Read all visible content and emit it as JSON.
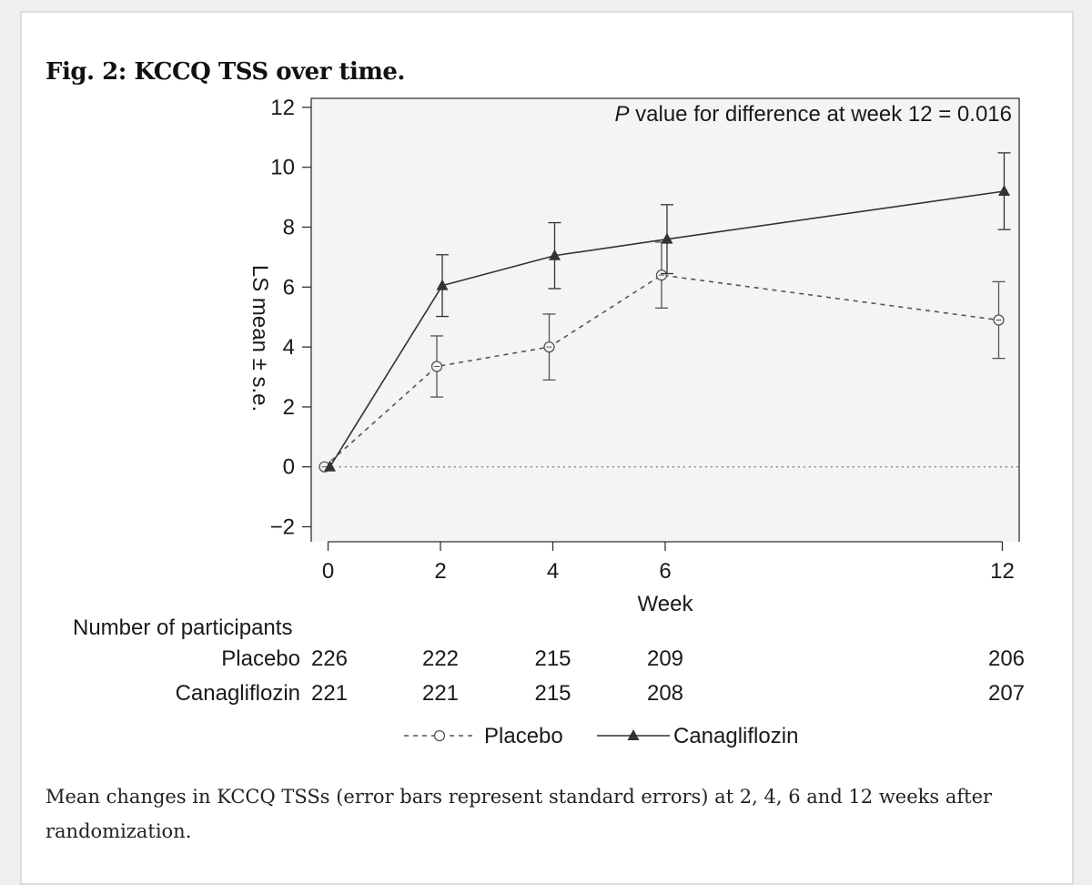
{
  "figure": {
    "title": "Fig. 2: KCCQ TSS over time.",
    "caption": "Mean changes in KCCQ TSSs (error bars represent standard errors) at 2, 4, 6 and 12 weeks after randomization."
  },
  "chart_data": {
    "type": "line",
    "annotation": {
      "italic": "P",
      "rest": " value for difference at week 12 = 0.016"
    },
    "xlabel": "Week",
    "ylabel": "LS mean ± s.e.",
    "x": [
      0,
      2,
      4,
      6,
      12
    ],
    "xticks": [
      0,
      2,
      4,
      6,
      12
    ],
    "yticks": [
      12,
      10,
      8,
      6,
      4,
      2,
      0,
      -2
    ],
    "ytick_labels": [
      "12",
      "10",
      "8",
      "6",
      "4",
      "2",
      "0",
      "−2"
    ],
    "xlim": [
      -0.3,
      12.3
    ],
    "ylim": [
      -2.5,
      12.3
    ],
    "reference_line_y": 0,
    "series": [
      {
        "name": "Placebo",
        "style": "dashed",
        "marker": "circle",
        "color": "#555555",
        "values": [
          0,
          3.35,
          4.0,
          6.4,
          4.9
        ],
        "se": [
          0,
          1.02,
          1.1,
          1.1,
          1.28
        ]
      },
      {
        "name": "Canagliflozin",
        "style": "solid",
        "marker": "triangle",
        "color": "#333333",
        "values": [
          0,
          6.05,
          7.05,
          7.6,
          9.2
        ],
        "se": [
          0,
          1.03,
          1.1,
          1.15,
          1.28
        ]
      }
    ],
    "participants": {
      "header": "Number of participants",
      "rows": [
        {
          "label": "Placebo",
          "counts": [
            "226",
            "222",
            "215",
            "209",
            "206"
          ]
        },
        {
          "label": "Canagliflozin",
          "counts": [
            "221",
            "221",
            "215",
            "208",
            "207"
          ]
        }
      ]
    },
    "legend": [
      {
        "label": "Placebo",
        "marker": "circle",
        "style": "dashed"
      },
      {
        "label": "Canagliflozin",
        "marker": "triangle",
        "style": "solid"
      }
    ]
  }
}
